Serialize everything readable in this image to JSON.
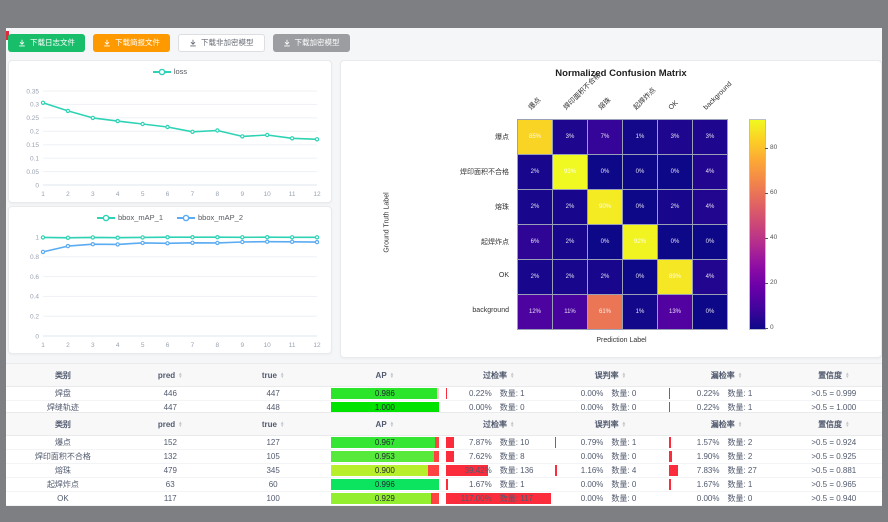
{
  "toolbar": {
    "buttons": [
      {
        "label": "下载日志文件",
        "style": "green"
      },
      {
        "label": "下载简报文件",
        "style": "orange"
      },
      {
        "label": "下载非加密模型",
        "style": "plain"
      },
      {
        "label": "下载加密模型",
        "style": "gray"
      }
    ]
  },
  "colors": {
    "accent_green": "#19be6b",
    "accent_orange": "#ff9900",
    "loss_line": "#2ed3b5",
    "map1_line": "#2ed3b5",
    "map2_line": "#5aabf2",
    "rate_bar_red": "#fb2c3c"
  },
  "charts": [
    {
      "type": "line",
      "ymax": 0.35,
      "y_tick_labels": [
        "0",
        "0.05",
        "0.1",
        "0.15",
        "0.2",
        "0.25",
        "0.3",
        "0.35"
      ],
      "x_labels": [
        "1",
        "2",
        "3",
        "4",
        "5",
        "6",
        "7",
        "8",
        "9",
        "10",
        "11",
        "12"
      ],
      "series": [
        {
          "name": "loss",
          "color": "#2ed3b5",
          "values": [
            0.306,
            0.276,
            0.25,
            0.238,
            0.227,
            0.216,
            0.198,
            0.203,
            0.181,
            0.186,
            0.174,
            0.17
          ]
        }
      ]
    },
    {
      "type": "line",
      "ymax": 1.0,
      "y_tick_labels": [
        "0",
        "0.2",
        "0.4",
        "0.6",
        "0.8",
        "1"
      ],
      "x_labels": [
        "1",
        "2",
        "3",
        "4",
        "5",
        "6",
        "7",
        "8",
        "9",
        "10",
        "11",
        "12"
      ],
      "series": [
        {
          "name": "bbox_mAP_1",
          "color": "#2ed3b5",
          "values": [
            0.996,
            0.992,
            0.996,
            0.993,
            0.996,
            0.998,
            0.998,
            0.998,
            0.997,
            0.998,
            0.997,
            0.997
          ]
        },
        {
          "name": "bbox_mAP_2",
          "color": "#5aabf2",
          "values": [
            0.849,
            0.908,
            0.927,
            0.925,
            0.94,
            0.936,
            0.941,
            0.94,
            0.95,
            0.953,
            0.952,
            0.948
          ]
        }
      ]
    }
  ],
  "confusion_matrix": {
    "title": "Normalized Confusion Matrix",
    "x_label": "Prediction Label",
    "y_label": "Ground Truth Label",
    "classes": [
      "爆点",
      "焊印面积不合格",
      "熔珠",
      "起焊炸点",
      "OK",
      "background"
    ],
    "values_pct": [
      [
        85,
        3,
        7,
        1,
        3,
        3
      ],
      [
        2,
        93,
        0,
        0,
        0,
        4
      ],
      [
        2,
        2,
        90,
        0,
        2,
        4
      ],
      [
        6,
        2,
        0,
        92,
        0,
        0
      ],
      [
        2,
        2,
        2,
        0,
        89,
        4
      ],
      [
        12,
        11,
        61,
        1,
        13,
        0
      ]
    ],
    "vmax": 93,
    "colorbar_ticks": [
      0,
      20,
      40,
      60,
      80
    ]
  },
  "table_headers": [
    {
      "label": "类别",
      "sortable": false
    },
    {
      "label": "pred",
      "sortable": true
    },
    {
      "label": "true",
      "sortable": true
    },
    {
      "label": "AP",
      "sortable": true
    },
    {
      "label": "过检率",
      "sortable": true
    },
    {
      "label": "误判率",
      "sortable": true
    },
    {
      "label": "漏检率",
      "sortable": true
    },
    {
      "label": "置信度",
      "sortable": true
    }
  ],
  "tables": [
    {
      "name": "summary",
      "ap_rest_color": "#ffc4d0",
      "rows": [
        {
          "category": "焊盘",
          "pred": "446",
          "true": "447",
          "ap": 0.986,
          "ap_label": "0.986",
          "ap_color": "#2be52b",
          "over_rate": {
            "pct": "0.22%",
            "count": "数量: 1"
          },
          "misjudge_rate": {
            "pct": "0.00%",
            "count": "数量: 0"
          },
          "miss_rate": {
            "pct": "0.22%",
            "count": "数量: 1"
          },
          "confidence": ">0.5 = 0.999"
        },
        {
          "category": "焊缝轨迹",
          "pred": "447",
          "true": "448",
          "ap": 1.0,
          "ap_label": "1.000",
          "ap_color": "#00e200",
          "over_rate": {
            "pct": "0.00%",
            "count": "数量: 0"
          },
          "misjudge_rate": {
            "pct": "0.00%",
            "count": "数量: 0"
          },
          "miss_rate": {
            "pct": "0.22%",
            "count": "数量: 1"
          },
          "confidence": ">0.5 = 1.000"
        }
      ]
    },
    {
      "name": "defects",
      "ap_rest_color": "#ff4343",
      "rows": [
        {
          "category": "爆点",
          "pred": "152",
          "true": "127",
          "ap": 0.967,
          "ap_label": "0.967",
          "ap_color": "#35e635",
          "over_rate": {
            "pct": "7.87%",
            "count": "数量: 10"
          },
          "misjudge_rate": {
            "pct": "0.79%",
            "count": "数量: 1"
          },
          "miss_rate": {
            "pct": "1.57%",
            "count": "数量: 2"
          },
          "confidence": ">0.5 = 0.924"
        },
        {
          "category": "焊印面积不合格",
          "pred": "132",
          "true": "105",
          "ap": 0.953,
          "ap_label": "0.953",
          "ap_color": "#57e93b",
          "over_rate": {
            "pct": "7.62%",
            "count": "数量: 8"
          },
          "misjudge_rate": {
            "pct": "0.00%",
            "count": "数量: 0"
          },
          "miss_rate": {
            "pct": "1.90%",
            "count": "数量: 2"
          },
          "confidence": ">0.5 = 0.925"
        },
        {
          "category": "熔珠",
          "pred": "479",
          "true": "345",
          "ap": 0.9,
          "ap_label": "0.900",
          "ap_color": "#b7ef2d",
          "over_rate": {
            "pct": "39.42%",
            "count": "数量: 136"
          },
          "misjudge_rate": {
            "pct": "1.16%",
            "count": "数量: 4"
          },
          "miss_rate": {
            "pct": "7.83%",
            "count": "数量: 27"
          },
          "confidence": ">0.5 = 0.881"
        },
        {
          "category": "起焊炸点",
          "pred": "63",
          "true": "60",
          "ap": 0.996,
          "ap_label": "0.996",
          "ap_color": "#0ce460",
          "over_rate": {
            "pct": "1.67%",
            "count": "数量: 1"
          },
          "misjudge_rate": {
            "pct": "0.00%",
            "count": "数量: 0"
          },
          "miss_rate": {
            "pct": "1.67%",
            "count": "数量: 1"
          },
          "confidence": ">0.5 = 0.965"
        },
        {
          "category": "OK",
          "pred": "117",
          "true": "100",
          "ap": 0.929,
          "ap_label": "0.929",
          "ap_color": "#93ee2f",
          "over_rate": {
            "pct": "117.00%",
            "count": "数量: 117"
          },
          "misjudge_rate": {
            "pct": "0.00%",
            "count": "数量: 0"
          },
          "miss_rate": {
            "pct": "0.00%",
            "count": "数量: 0"
          },
          "confidence": ">0.5 = 0.940"
        }
      ]
    }
  ]
}
